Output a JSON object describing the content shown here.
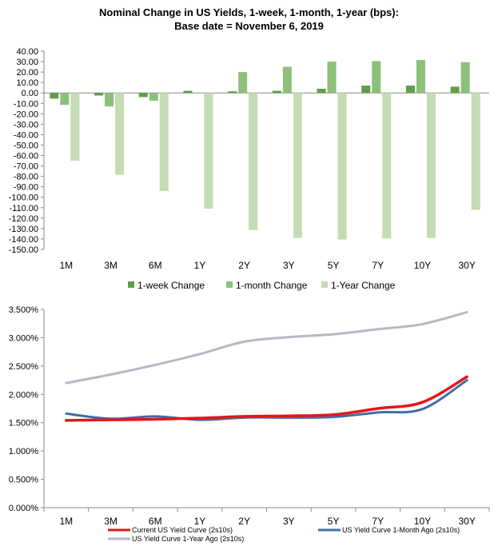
{
  "title_line1": "Nominal Change in US Yields, 1-week, 1-month, 1-year (bps):",
  "title_line2": "Base date = November 6, 2019",
  "chart_data": [
    {
      "type": "bar",
      "categories": [
        "1M",
        "3M",
        "6M",
        "1Y",
        "2Y",
        "3Y",
        "5Y",
        "7Y",
        "10Y",
        "30Y"
      ],
      "ylim": [
        -150,
        40
      ],
      "ytick_step": 10,
      "grid": false,
      "legend_position": "bottom",
      "series": [
        {
          "name": "1-week Change",
          "color": "#5f9f4a",
          "values": [
            -5.5,
            -2.5,
            -4,
            2,
            1.5,
            2,
            4,
            7,
            7,
            6
          ]
        },
        {
          "name": "1-month Change",
          "color": "#8dc07a",
          "values": [
            -11.5,
            -13,
            -7.5,
            0,
            20,
            25,
            30,
            30.5,
            31.5,
            29.5
          ]
        },
        {
          "name": "1-Year Change",
          "color": "#c4dcb4",
          "values": [
            -65,
            -78.5,
            -94,
            -111,
            -131.5,
            -139,
            -140.5,
            -139.5,
            -139,
            -112
          ]
        }
      ]
    },
    {
      "type": "line",
      "categories": [
        "1M",
        "3M",
        "6M",
        "1Y",
        "2Y",
        "3Y",
        "5Y",
        "7Y",
        "10Y",
        "30Y"
      ],
      "ylim": [
        0,
        3.5
      ],
      "ytick_step": 0.5,
      "grid": false,
      "legend_position": "bottom",
      "series": [
        {
          "name": "Current US Yield Curve (2s10s)",
          "color": "#e8151b",
          "values": [
            1.54,
            1.55,
            1.56,
            1.58,
            1.61,
            1.62,
            1.64,
            1.75,
            1.86,
            2.31
          ]
        },
        {
          "name": "US Yield Curve 1-Month Ago (2s10s)",
          "color": "#3f6fa3",
          "values": [
            1.66,
            1.57,
            1.61,
            1.55,
            1.59,
            1.59,
            1.6,
            1.68,
            1.74,
            2.25
          ]
        },
        {
          "name": "US Yield Curve 1-Year Ago (2s10s)",
          "color": "#b5b9c4",
          "values": [
            2.2,
            2.35,
            2.52,
            2.71,
            2.93,
            3.01,
            3.06,
            3.15,
            3.24,
            3.45
          ]
        }
      ]
    }
  ]
}
